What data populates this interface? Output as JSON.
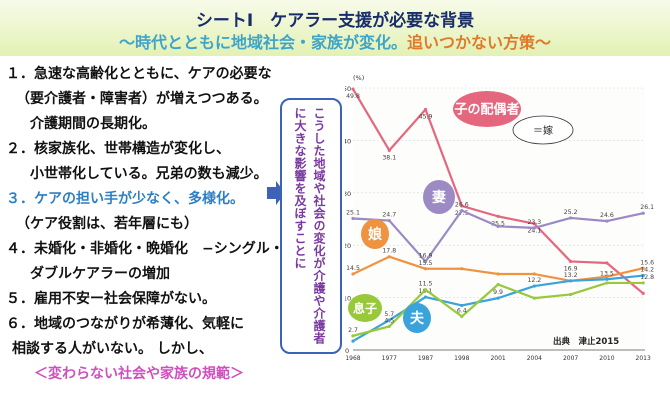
{
  "header": {
    "title": "シートⅠ　ケアラー支援が必要な背景",
    "subtitle_a": "〜時代とともに地域社会・家族が変化。",
    "subtitle_b": "追いつかない方策〜"
  },
  "list": {
    "r1": "１．急速な高齢化とともに、ケアの必要な",
    "r2": "（要介護者・障害者）が増えつつある。",
    "r3": "介護期間の長期化。",
    "r4": "２．核家族化、世帯構造が変化し、",
    "r5": "小世帯化している。兄弟の数も減少。",
    "r6": "３．ケアの担い手が少なく、多様化。",
    "r7": "（ケア役割は、若年層にも）",
    "r8": "４．未婚化・非婚化・晩婚化　−シングル・",
    "r9": "ダブルケアラーの増加",
    "r10": "５．雇用不安ー社会保障がない。",
    "r11": "６．地域のつながりが希薄化、気軽に",
    "r12": "相談する人がいない。 しかし、",
    "r13": "＜変わらない社会や家族の規範＞"
  },
  "vertical_note": "こうした地域や社会の変化が介護や介護者に大きな影響を及ぼすことに",
  "chart_data": {
    "type": "line",
    "y_unit": "(%)",
    "ylim": [
      0,
      50
    ],
    "yticks": [
      "0",
      "10",
      "20",
      "30",
      "40",
      "50"
    ],
    "x_labels": [
      "1968",
      "1977",
      "1987",
      "1998",
      "2001",
      "2004",
      "2007",
      "2010",
      "2013",
      "(年)"
    ],
    "x": [
      1968,
      1977,
      1987,
      1998,
      2001,
      2004,
      2007,
      2010,
      2013
    ],
    "source": "出典　津止2015",
    "annotation": "＝嫁",
    "series": [
      {
        "name": "子の配偶者",
        "color": "#e5677e",
        "values": [
          49.8,
          38.1,
          45.9,
          27.5,
          25.5,
          24.1,
          16.9,
          16.6,
          10.8
        ],
        "labels": [
          "49.8",
          "38.1",
          "45.9",
          "27.5",
          "25.5",
          "24.1",
          "16.9",
          "",
          ""
        ]
      },
      {
        "name": "妻",
        "color": "#9b8ac4",
        "values": [
          25.1,
          24.7,
          16.9,
          26.6,
          23.6,
          23.3,
          25.2,
          24.6,
          26.1
        ],
        "labels": [
          "25.1",
          "24.7",
          "16.9",
          "26.6",
          "",
          "23.3",
          "25.2",
          "24.6",
          "26.1"
        ]
      },
      {
        "name": "娘",
        "color": "#ef9340",
        "values": [
          14.5,
          17.8,
          15.5,
          15.5,
          14.5,
          14.5,
          13.2,
          14.0,
          15.6
        ],
        "labels": [
          "14.5",
          "17.8",
          "15.5",
          "",
          "",
          "",
          "13.2",
          "",
          "15.6"
        ]
      },
      {
        "name": "夫",
        "color": "#3aa3dc",
        "values": [
          1.7,
          5.7,
          10.1,
          8.5,
          9.9,
          12.2,
          13.2,
          13.5,
          14.2
        ],
        "labels": [
          "",
          "5.7",
          "10.1",
          "",
          "9.9",
          "12.2",
          "",
          "13.5",
          "14.2"
        ]
      },
      {
        "name": "息子",
        "color": "#97c93a",
        "values": [
          2.7,
          4.5,
          11.5,
          6.4,
          12.5,
          9.9,
          10.6,
          12.8,
          12.8
        ],
        "labels": [
          "2.7",
          "4.5",
          "11.5",
          "6.4",
          "",
          "",
          "",
          "",
          "12.8"
        ]
      }
    ],
    "bubbles": [
      {
        "series": "子の配偶者",
        "text": "子の配偶者"
      },
      {
        "series": "妻",
        "text": "妻"
      },
      {
        "series": "娘",
        "text": "娘"
      },
      {
        "series": "夫",
        "text": "夫"
      },
      {
        "series": "息子",
        "text": "息子"
      }
    ],
    "colors": {
      "bubble_spouse": "#e5677e",
      "bubble_wife": "#9b8ac4",
      "bubble_daughter": "#ef9340",
      "bubble_husband": "#3aa3dc",
      "bubble_son": "#97c93a",
      "axis": "#555555"
    }
  }
}
